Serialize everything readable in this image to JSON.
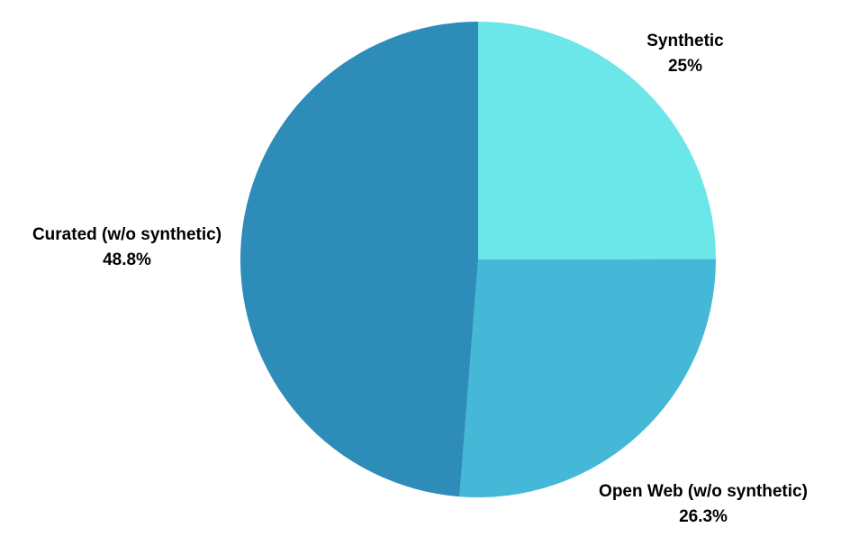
{
  "chart_data": {
    "type": "pie",
    "title": "",
    "slices": [
      {
        "label": "Synthetic",
        "value": 25,
        "value_label": "25%",
        "color": "#6be6e9"
      },
      {
        "label": "Open Web (w/o synthetic)",
        "value": 26.3,
        "value_label": "26.3%",
        "color": "#44b8d6"
      },
      {
        "label": "Curated (w/o synthetic)",
        "value": 48.8,
        "value_label": "48.8%",
        "color": "#2e8cb9"
      }
    ],
    "start_angle": "12 o'clock",
    "direction": "clockwise",
    "legend": "none",
    "labels": "outside"
  }
}
